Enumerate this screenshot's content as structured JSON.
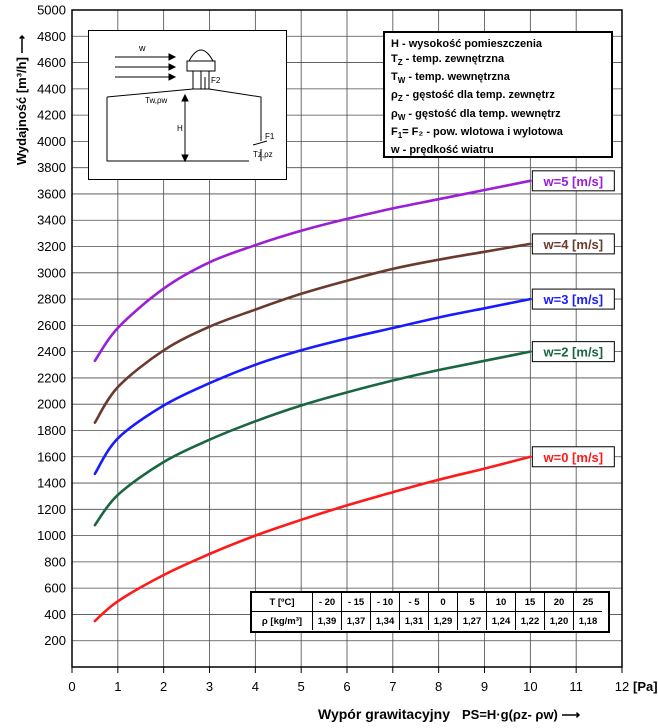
{
  "chart_data": {
    "type": "line",
    "ylabel": "Wydajność [m³/h] ⟶",
    "xlabel_main": "Wypór grawitacyjny",
    "xlabel_formula": "PS=H·g(ρz- ρw) ⟶",
    "x_unit": "[Pa]",
    "xlim": [
      0,
      12
    ],
    "ylim": [
      0,
      5000
    ],
    "x_ticks": [
      "0",
      "1",
      "2",
      "3",
      "4",
      "5",
      "6",
      "7",
      "8",
      "9",
      "10",
      "11",
      "12"
    ],
    "y_ticks": [
      "200",
      "400",
      "600",
      "800",
      "1000",
      "1200",
      "1400",
      "1600",
      "1800",
      "2000",
      "2200",
      "2400",
      "2600",
      "2800",
      "3000",
      "3200",
      "3400",
      "3600",
      "3800",
      "4000",
      "4200",
      "4400",
      "4600",
      "4800",
      "5000"
    ],
    "grid": true,
    "series": [
      {
        "name": "w=0 [m/s]",
        "color": "#ff1a1a",
        "x": [
          0.5,
          1,
          2,
          3,
          4,
          5,
          6,
          7,
          8,
          9,
          10
        ],
        "values": [
          350,
          500,
          700,
          860,
          1000,
          1120,
          1230,
          1330,
          1425,
          1510,
          1600
        ]
      },
      {
        "name": "w=2 [m/s]",
        "color": "#1a6640",
        "x": [
          0.5,
          1,
          2,
          3,
          4,
          5,
          6,
          7,
          8,
          9,
          10
        ],
        "values": [
          1080,
          1310,
          1560,
          1730,
          1870,
          1990,
          2090,
          2180,
          2260,
          2330,
          2400
        ]
      },
      {
        "name": "w=3 [m/s]",
        "color": "#1a1aff",
        "x": [
          0.5,
          1,
          2,
          3,
          4,
          5,
          6,
          7,
          8,
          9,
          10
        ],
        "values": [
          1470,
          1740,
          1990,
          2160,
          2300,
          2410,
          2500,
          2580,
          2660,
          2730,
          2800
        ]
      },
      {
        "name": "w=4 [m/s]",
        "color": "#6b3a2e",
        "x": [
          0.5,
          1,
          2,
          3,
          4,
          5,
          6,
          7,
          8,
          9,
          10
        ],
        "values": [
          1860,
          2130,
          2410,
          2590,
          2720,
          2840,
          2940,
          3030,
          3100,
          3160,
          3220
        ]
      },
      {
        "name": "w=5 [m/s]",
        "color": "#9a1fd6",
        "x": [
          0.5,
          1,
          2,
          3,
          4,
          5,
          6,
          7,
          8,
          9,
          10
        ],
        "values": [
          2330,
          2580,
          2880,
          3080,
          3210,
          3320,
          3410,
          3490,
          3560,
          3630,
          3700
        ]
      }
    ]
  },
  "legend": [
    {
      "sym": "H",
      "sub": "",
      "text": " - wysokość pomieszczenia"
    },
    {
      "sym": "T",
      "sub": "Z",
      "text": " - temp. zewnętrzna"
    },
    {
      "sym": "T",
      "sub": "W",
      "text": " - temp. wewnętrzna"
    },
    {
      "sym": "ρ",
      "sub": "Z",
      "text": " - gęstość dla temp. zewnętrz"
    },
    {
      "sym": "ρ",
      "sub": "W",
      "text": " - gęstość dla temp. wewnętrz"
    },
    {
      "sym": "F",
      "sub": "1",
      "text": "= F₂ - pow. wlotowa i wylotowa"
    },
    {
      "sym": "w",
      "sub": "",
      "text": " - prędkość wiatru"
    }
  ],
  "density_table": {
    "row1_header": "T [ºC]",
    "row2_header": "ρ [kg/m³]",
    "temps": [
      "- 20",
      "- 15",
      "- 10",
      "- 5",
      "0",
      "5",
      "10",
      "15",
      "20",
      "25"
    ],
    "densities": [
      "1,39",
      "1,37",
      "1,34",
      "1,31",
      "1,29",
      "1,27",
      "1,24",
      "1,22",
      "1,20",
      "1,18"
    ]
  },
  "diagram": {
    "wind": "w",
    "f2": "F2",
    "f1": "F1",
    "h": "H",
    "inside": "Tw,ρw",
    "outside": "Tz,ρz"
  }
}
